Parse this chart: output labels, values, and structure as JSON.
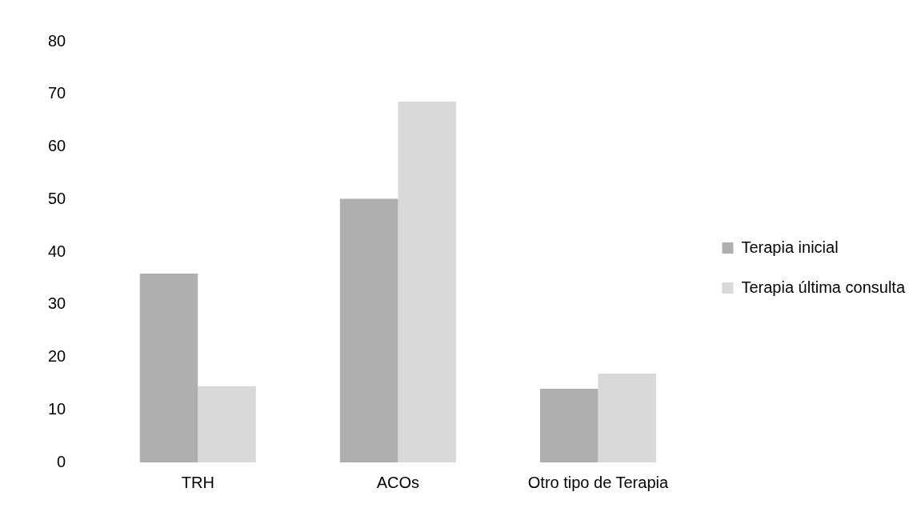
{
  "chart_data": {
    "type": "bar",
    "categories": [
      "TRH",
      "ACOs",
      "Otro tipo de Terapia"
    ],
    "series": [
      {
        "name": "Terapia inicial",
        "color": "#afafaf",
        "values": [
          35.9,
          50.1,
          14.0
        ]
      },
      {
        "name": "Terapia última consulta",
        "color": "#d9d9d9",
        "values": [
          14.5,
          68.6,
          16.9
        ]
      }
    ],
    "ylim": [
      0,
      80
    ],
    "yticks": [
      0,
      10,
      20,
      30,
      40,
      50,
      60,
      70,
      80
    ],
    "grid": false,
    "legend": "right"
  }
}
